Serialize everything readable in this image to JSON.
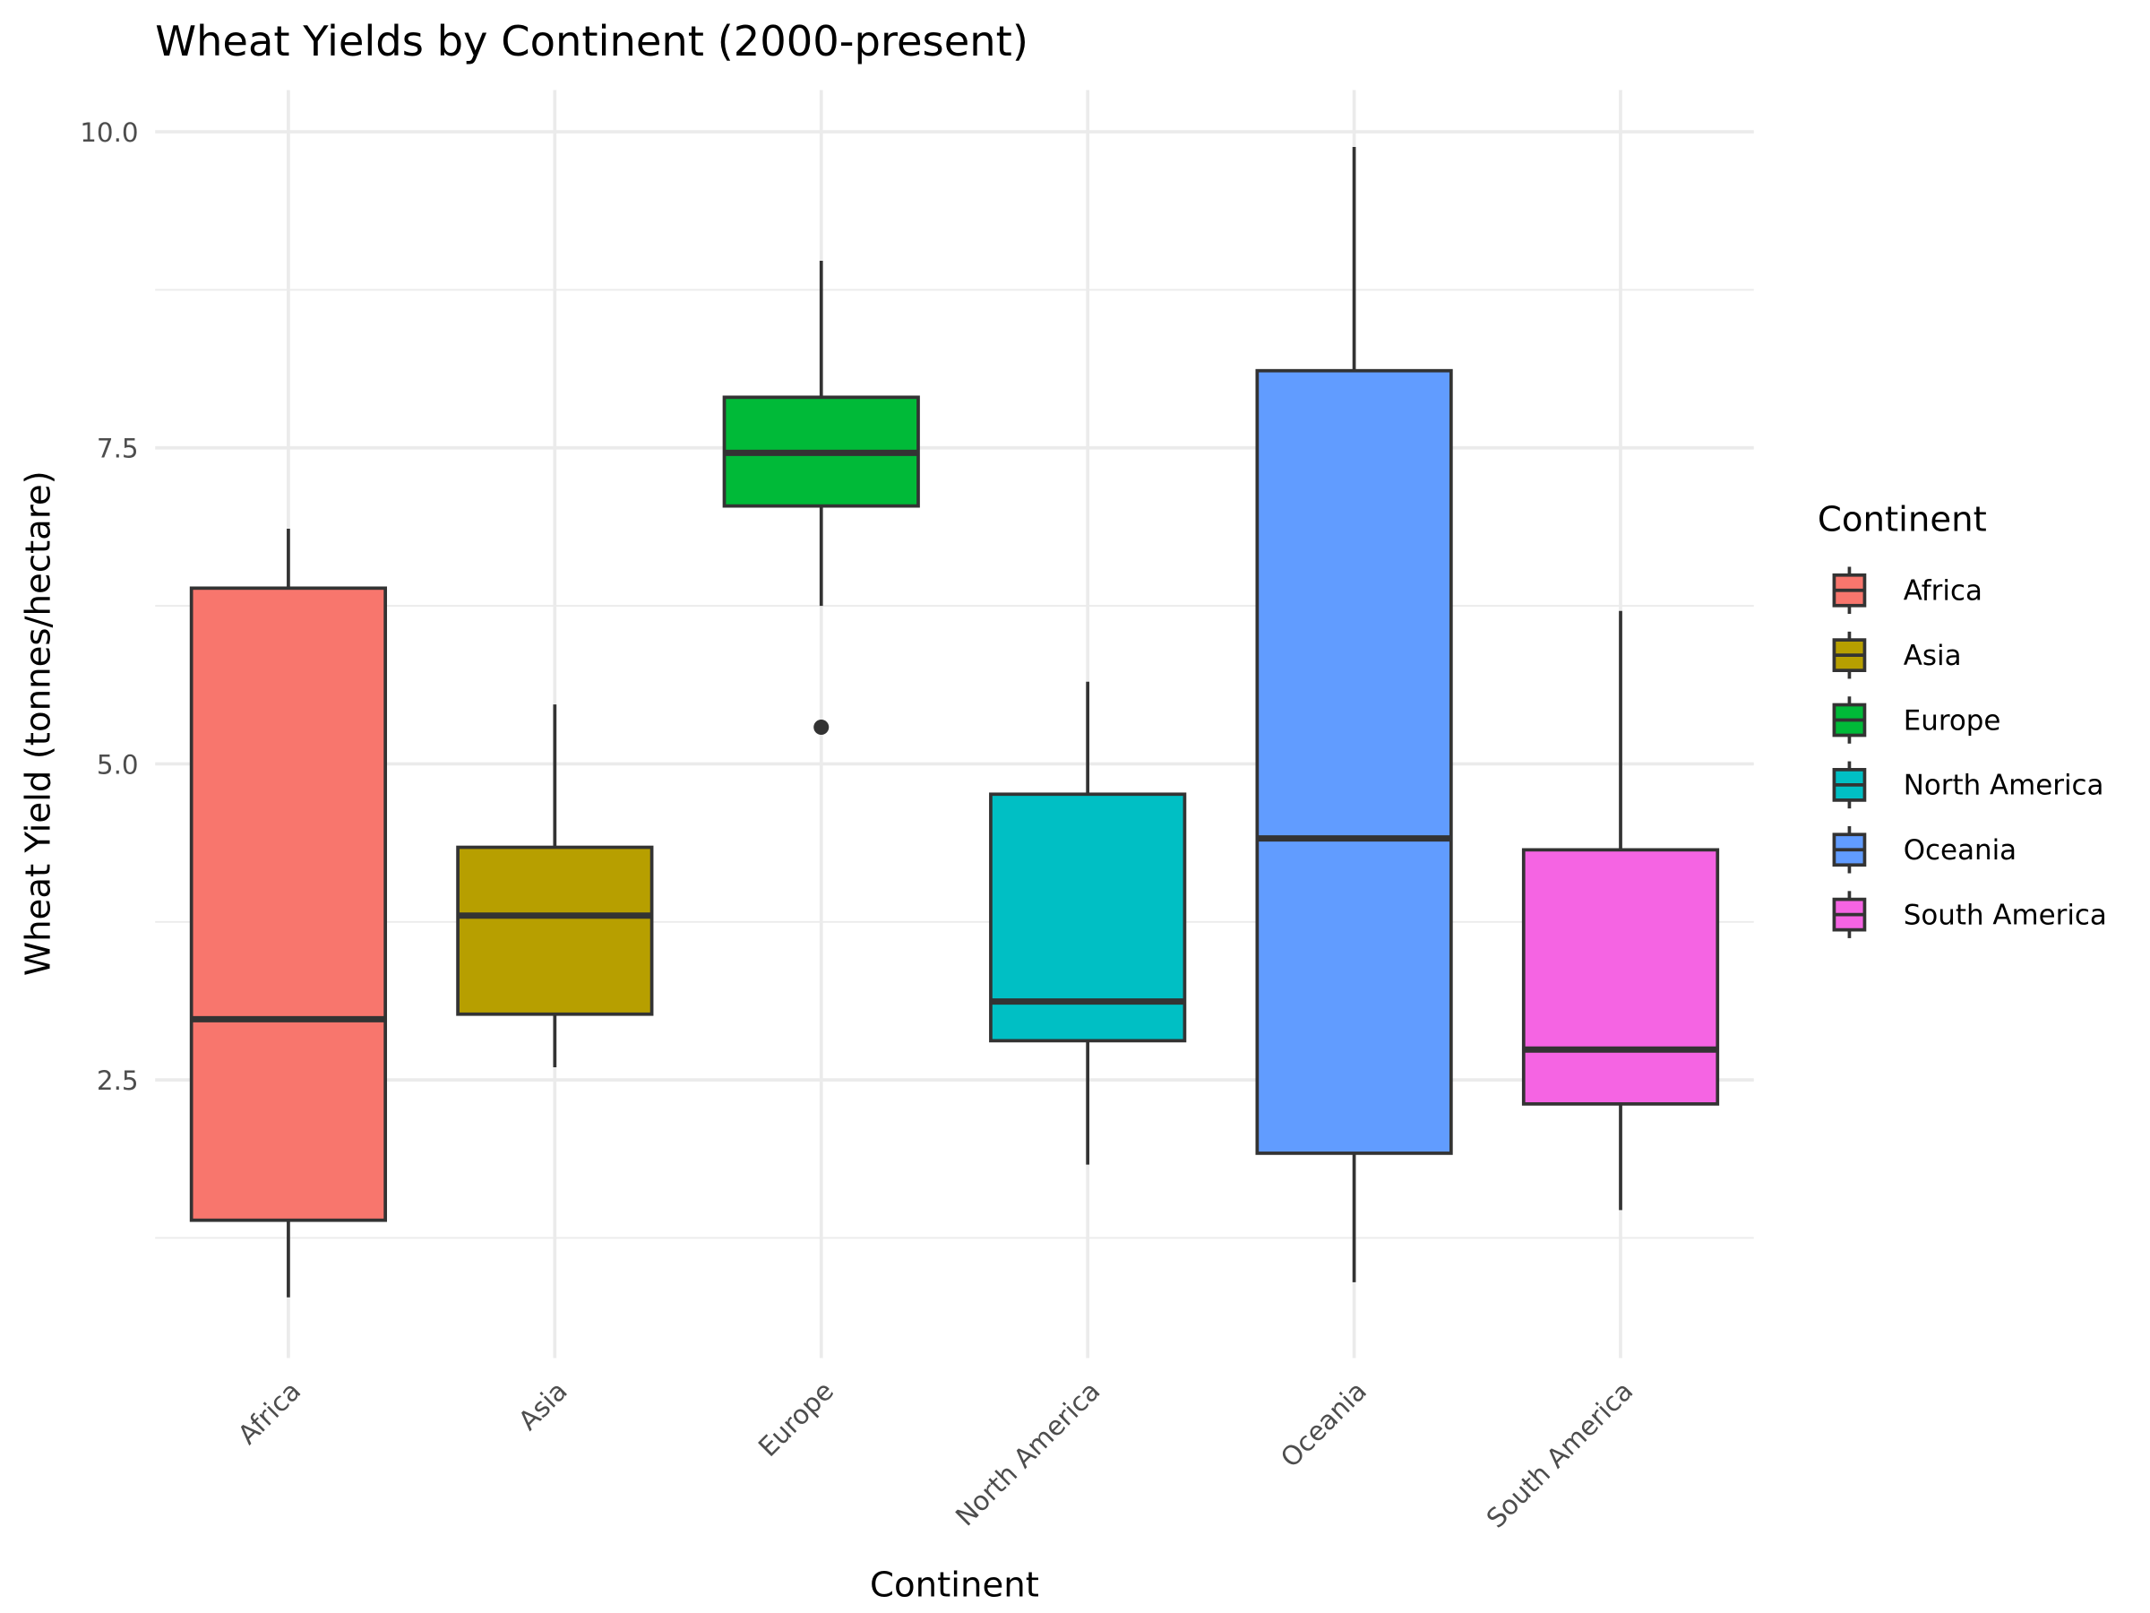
{
  "chart_data": {
    "type": "boxplot",
    "title": "Wheat Yields by Continent (2000-present)",
    "xlabel": "Continent",
    "ylabel": "Wheat Yield (tonnes/hectare)",
    "ylim": [
      0.3,
      10.33
    ],
    "yticks": [
      2.5,
      5.0,
      7.5,
      10.0
    ],
    "ytick_labels": [
      "2.5",
      "5.0",
      "7.5",
      "10.0"
    ],
    "grid": true,
    "legend": {
      "title": "Continent",
      "placement": "right"
    },
    "categories": [
      "Africa",
      "Asia",
      "Europe",
      "North America",
      "Oceania",
      "South America"
    ],
    "colors": [
      "#F8766D",
      "#B79F00",
      "#00BA38",
      "#00BFC4",
      "#619CFF",
      "#F564E3"
    ],
    "boxes": [
      {
        "name": "Africa",
        "whisker_low": 0.78,
        "q1": 1.39,
        "median": 2.98,
        "q3": 6.39,
        "whisker_high": 6.86,
        "outliers": []
      },
      {
        "name": "Asia",
        "whisker_low": 2.6,
        "q1": 3.02,
        "median": 3.8,
        "q3": 4.34,
        "whisker_high": 5.47,
        "outliers": []
      },
      {
        "name": "Europe",
        "whisker_low": 6.25,
        "q1": 7.04,
        "median": 7.46,
        "q3": 7.9,
        "whisker_high": 8.98,
        "outliers": [
          5.29
        ]
      },
      {
        "name": "North America",
        "whisker_low": 1.83,
        "q1": 2.81,
        "median": 3.12,
        "q3": 4.76,
        "whisker_high": 5.65,
        "outliers": []
      },
      {
        "name": "Oceania",
        "whisker_low": 0.9,
        "q1": 1.92,
        "median": 4.41,
        "q3": 8.11,
        "whisker_high": 9.88,
        "outliers": []
      },
      {
        "name": "South America",
        "whisker_low": 1.47,
        "q1": 2.31,
        "median": 2.74,
        "q3": 4.32,
        "whisker_high": 6.21,
        "outliers": []
      }
    ]
  }
}
